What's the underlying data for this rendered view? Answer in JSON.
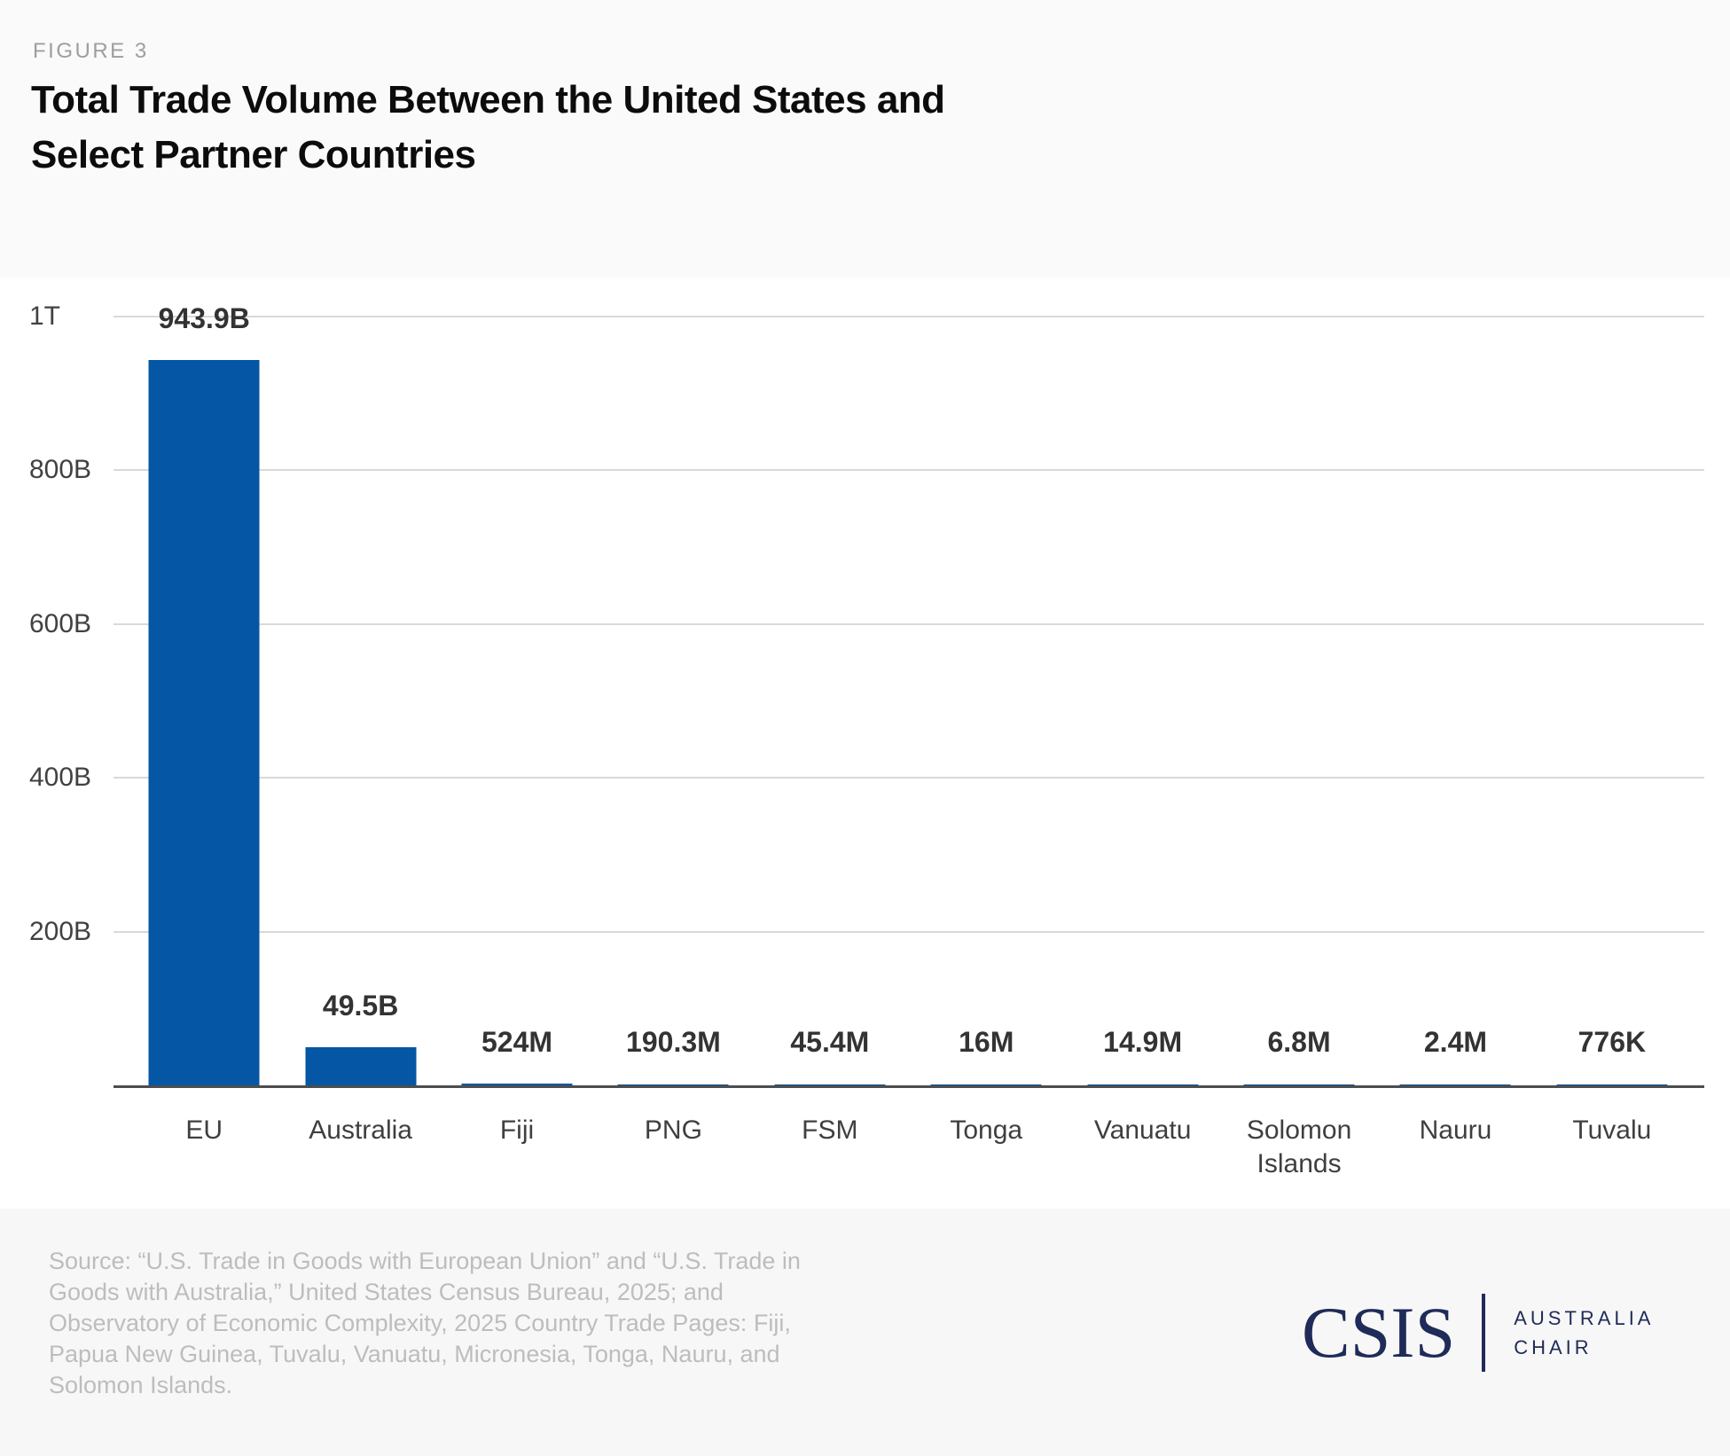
{
  "header": {
    "figure_label": "FIGURE 3",
    "title_line1": "Total Trade Volume Between the United States and",
    "title_line2": "Select Partner Countries"
  },
  "chart_data": {
    "type": "bar",
    "title": "Total Trade Volume Between the United States and Select Partner Countries",
    "categories": [
      "EU",
      "Australia",
      "Fiji",
      "PNG",
      "FSM",
      "Tonga",
      "Vanuatu",
      "Solomon Islands",
      "Nauru",
      "Tuvalu"
    ],
    "values_usd_billions": [
      943.9,
      49.5,
      0.524,
      0.1903,
      0.0454,
      0.016,
      0.0149,
      0.0068,
      0.0024,
      0.000776
    ],
    "value_labels": [
      "943.9B",
      "49.5B",
      "524M",
      "190.3M",
      "45.4M",
      "16M",
      "14.9M",
      "6.8M",
      "2.4M",
      "776K"
    ],
    "xlabel": "",
    "ylabel": "",
    "ylim": [
      0,
      1000
    ],
    "y_ticks": [
      {
        "label": "1T",
        "value": 1000
      },
      {
        "label": "800B",
        "value": 800
      },
      {
        "label": "600B",
        "value": 600
      },
      {
        "label": "400B",
        "value": 400
      },
      {
        "label": "200B",
        "value": 200
      }
    ],
    "grid": true,
    "legend": false,
    "bar_color": "#0556a5"
  },
  "footer": {
    "source_lines": [
      "Source: “U.S. Trade in Goods with European Union” and “U.S. Trade in",
      "Goods with Australia,” United States Census Bureau, 2025; and",
      "Observatory of Economic Complexity, 2025 Country Trade Pages: Fiji,",
      "Papua New Guinea, Tuvalu, Vanuatu, Micronesia, Tonga, Nauru, and",
      "Solomon Islands."
    ],
    "logo": {
      "wordmark": "CSIS",
      "program_line1": "AUSTRALIA",
      "program_line2": "CHAIR",
      "navy": "#1f2b58"
    }
  }
}
